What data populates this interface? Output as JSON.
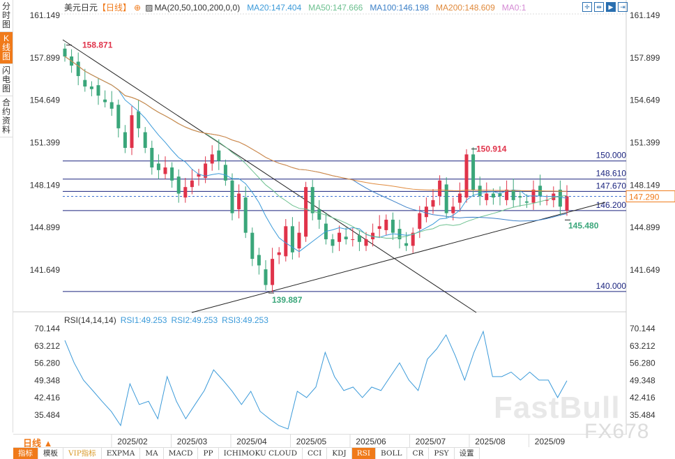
{
  "sidebar": [
    {
      "label": "分时图",
      "active": false
    },
    {
      "label": "K线图",
      "active": true
    },
    {
      "label": "闪电图",
      "active": false
    },
    {
      "label": "合约资料",
      "active": false
    }
  ],
  "header": {
    "symbol": "美元日元",
    "period": "【日线】",
    "indicator": "MA(20,50,100,200,0,0)",
    "ma20": "MA20:147.404",
    "ma50": "MA50:147.666",
    "ma100": "MA100:146.198",
    "ma200": "MA200:148.609",
    "ma0": "MA0:1"
  },
  "rsi_header": {
    "name": "RSI(14,14,14)",
    "rsi1": "RSI1:49.253",
    "rsi2": "RSI2:49.253",
    "rsi3": "RSI3:49.253"
  },
  "colors": {
    "ma20": "#3b9ad9",
    "ma50": "#6cc08f",
    "ma100": "#3c80c8",
    "ma200": "#e08a3c",
    "up": "#e0334a",
    "down": "#3aa67a",
    "hline": "#1a237e",
    "accent": "#f07a1a"
  },
  "watermark": [
    "FastBull",
    "FX678"
  ],
  "period_selector": "日线 ▲",
  "toolbar": [
    {
      "label": "指标",
      "active": true
    },
    {
      "label": "模板"
    },
    {
      "label": "VIP指标",
      "vip": true
    },
    {
      "label": "EXPMA"
    },
    {
      "label": "MA"
    },
    {
      "label": "MACD"
    },
    {
      "label": "PP"
    },
    {
      "label": "ICHIMOKU CLOUD"
    },
    {
      "label": "CCI"
    },
    {
      "label": "KDJ"
    },
    {
      "label": "RSI",
      "active": true
    },
    {
      "label": "BOLL"
    },
    {
      "label": "CR"
    },
    {
      "label": "PSY"
    },
    {
      "label": "设置"
    }
  ],
  "chart_data": {
    "type": "candlestick",
    "price_ticks": [
      "161.149",
      "157.899",
      "154.649",
      "151.399",
      "148.149",
      "144.899",
      "141.649"
    ],
    "price_range": [
      138.2,
      161.149
    ],
    "rsi_ticks": [
      "70.144",
      "63.212",
      "56.280",
      "49.348",
      "42.416",
      "35.484"
    ],
    "x_ticks": [
      "2025/02",
      "2025/03",
      "2025/04",
      "2025/05",
      "2025/06",
      "2025/07",
      "2025/08",
      "2025/09"
    ],
    "closes": [
      158.0,
      157.3,
      156.5,
      155.7,
      155.5,
      155.0,
      154.5,
      154.0,
      152.5,
      151.0,
      153.5,
      152.5,
      151.0,
      149.5,
      149.3,
      149.5,
      148.5,
      147.5,
      148.0,
      148.5,
      149.0,
      149.8,
      150.5,
      150.0,
      148.5,
      146.0,
      147.5,
      144.5,
      142.5,
      142.0,
      140.5,
      142.5,
      143.0,
      145.0,
      143.0,
      144.5,
      148.0,
      146.0,
      145.5,
      144.0,
      143.5,
      144.5,
      144.0,
      144.0,
      143.8,
      144.0,
      144.5,
      145.0,
      145.5,
      144.5,
      144.0,
      143.5,
      144.5,
      146.0,
      146.5,
      147.0,
      148.5,
      146.0,
      146.5,
      147.5,
      150.5,
      147.8,
      147.3,
      147.5,
      147.2,
      147.3,
      147.8,
      147.0,
      147.2,
      146.8,
      147.8,
      147.3,
      147.0,
      147.5,
      146.5,
      147.29
    ],
    "rsi": [
      65.4,
      56.4,
      49.5,
      45.3,
      41,
      36.9,
      31.3,
      48,
      39.7,
      41,
      34,
      50.9,
      41,
      34,
      39.7,
      45.3,
      53.6,
      49.5,
      45,
      39.7,
      45,
      37,
      34,
      31.3,
      29.9,
      45,
      42.5,
      46.7,
      60.6,
      50.9,
      45.3,
      46.7,
      42.5,
      46.7,
      45.3,
      50.9,
      56.4,
      49.5,
      45.3,
      57.9,
      62,
      67.6,
      59.2,
      49.5,
      60.6,
      69,
      50.9,
      50.9,
      52.7,
      49.5,
      52.7,
      49.5,
      49.5,
      42.5,
      49.25
    ],
    "hlines": [
      {
        "value": 150.0,
        "label": "150.000"
      },
      {
        "value": 148.61,
        "label": "148.610"
      },
      {
        "value": 147.67,
        "label": "147.670"
      },
      {
        "value": 146.2,
        "label": "146.200"
      },
      {
        "value": 140.0,
        "label": "140.000"
      }
    ],
    "annotations": [
      {
        "label": "158.871",
        "value": 158.871,
        "type": "high"
      },
      {
        "label": "150.914",
        "value": 150.914,
        "type": "high"
      },
      {
        "label": "139.887",
        "value": 139.887,
        "type": "low"
      },
      {
        "label": "145.480",
        "value": 145.48,
        "type": "low"
      }
    ],
    "last_price": "147.290",
    "trendlines": [
      {
        "from": [
          158.871,
          "start"
        ],
        "to": [
          138.6,
          "2025/08"
        ]
      },
      {
        "from": [
          138.6,
          "2025/03"
        ],
        "to": [
          147.0,
          "2025/09"
        ]
      }
    ]
  }
}
